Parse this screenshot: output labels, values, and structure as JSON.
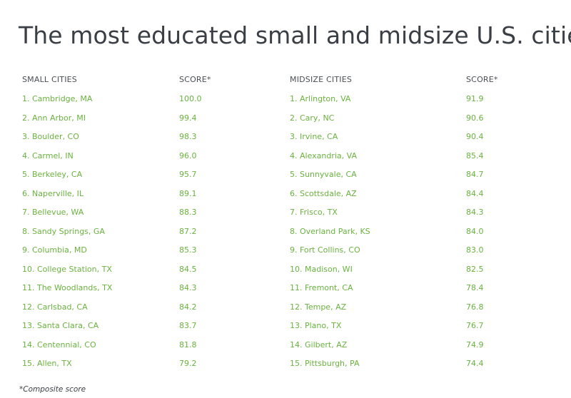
{
  "title": "The most educated small and midsize U.S. cities",
  "chart_data": {
    "type": "table",
    "title": "The most educated small and midsize U.S. cities",
    "columns": [
      "SMALL CITIES",
      "SCORE*",
      "MIDSIZE CITIES",
      "SCORE*"
    ],
    "small_cities": [
      {
        "city": "1. Cambridge, MA",
        "score": "100.0"
      },
      {
        "city": "2. Ann Arbor, MI",
        "score": "99.4"
      },
      {
        "city": "3. Boulder, CO",
        "score": "98.3"
      },
      {
        "city": "4. Carmel, IN",
        "score": "96.0"
      },
      {
        "city": "5. Berkeley, CA",
        "score": "95.7"
      },
      {
        "city": "6. Naperville, IL",
        "score": "89.1"
      },
      {
        "city": "7. Bellevue, WA",
        "score": "88.3"
      },
      {
        "city": "8. Sandy Springs, GA",
        "score": "87.2"
      },
      {
        "city": "9. Columbia, MD",
        "score": "85.3"
      },
      {
        "city": "10. College Station, TX",
        "score": "84.5"
      },
      {
        "city": "11. The Woodlands, TX",
        "score": "84.3"
      },
      {
        "city": "12. Carlsbad, CA",
        "score": "84.2"
      },
      {
        "city": "13. Santa Clara, CA",
        "score": "83.7"
      },
      {
        "city": "14. Centennial, CO",
        "score": "81.8"
      },
      {
        "city": "15. Allen, TX",
        "score": "79.2"
      }
    ],
    "midsize_cities": [
      {
        "city": "1. Arlington, VA",
        "score": "91.9"
      },
      {
        "city": "2. Cary, NC",
        "score": "90.6"
      },
      {
        "city": "3. Irvine, CA",
        "score": "90.4"
      },
      {
        "city": "4. Alexandria, VA",
        "score": "85.4"
      },
      {
        "city": "5. Sunnyvale, CA",
        "score": "84.7"
      },
      {
        "city": "6. Scottsdale, AZ",
        "score": "84.4"
      },
      {
        "city": "7. Frisco, TX",
        "score": "84.3"
      },
      {
        "city": "8. Overland Park, KS",
        "score": "84.0"
      },
      {
        "city": "9. Fort Collins, CO",
        "score": "83.0"
      },
      {
        "city": "10. Madison, WI",
        "score": "82.5"
      },
      {
        "city": "11. Fremont, CA",
        "score": "78.4"
      },
      {
        "city": "12. Tempe, AZ",
        "score": "76.8"
      },
      {
        "city": "13. Plano, TX",
        "score": "76.7"
      },
      {
        "city": "14. Gilbert, AZ",
        "score": "74.9"
      },
      {
        "city": "15. Pittsburgh, PA",
        "score": "74.4"
      }
    ],
    "footnote": "*Composite score"
  },
  "colors": {
    "title": "#3a3f45",
    "header": "#4a4f55",
    "value": "#6ab23f"
  }
}
